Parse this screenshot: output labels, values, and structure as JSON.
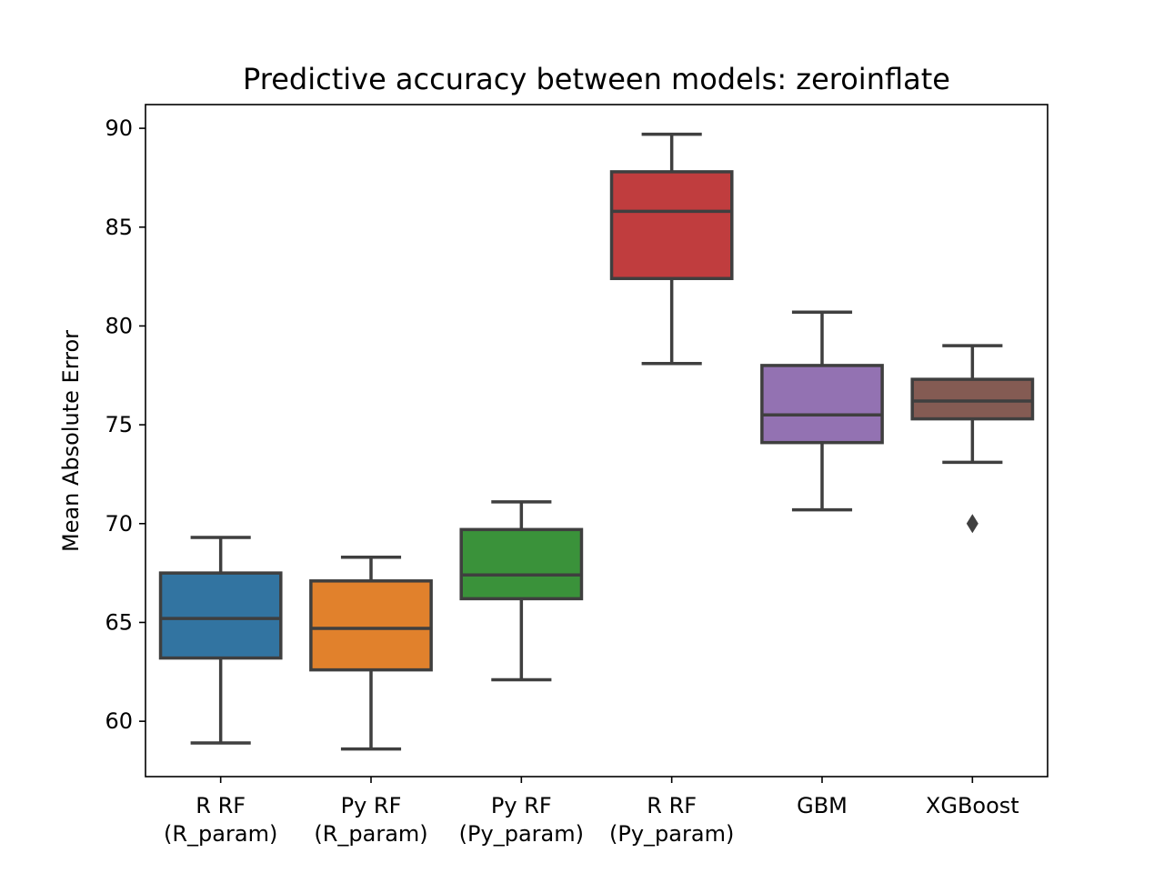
{
  "chart_data": {
    "type": "box",
    "title": "Predictive accuracy between models: zeroinflate",
    "xlabel": "",
    "ylabel": "Mean Absolute Error",
    "ylim": [
      57.2,
      91.2
    ],
    "yticks": [
      60,
      65,
      70,
      75,
      80,
      85,
      90
    ],
    "grid": false,
    "legend": "none",
    "categories": [
      [
        "R RF",
        "(R_param)"
      ],
      [
        "Py RF",
        "(R_param)"
      ],
      [
        "Py RF",
        "(Py_param)"
      ],
      [
        "R RF",
        "(Py_param)"
      ],
      [
        "GBM"
      ],
      [
        "XGBoost"
      ]
    ],
    "boxes": [
      {
        "whisker_low": 58.9,
        "q1": 63.2,
        "median": 65.2,
        "q3": 67.5,
        "whisker_high": 69.3,
        "outliers": [],
        "color": "#3274a1"
      },
      {
        "whisker_low": 58.6,
        "q1": 62.6,
        "median": 64.7,
        "q3": 67.1,
        "whisker_high": 68.3,
        "outliers": [],
        "color": "#e1812c"
      },
      {
        "whisker_low": 62.1,
        "q1": 66.2,
        "median": 67.4,
        "q3": 69.7,
        "whisker_high": 71.1,
        "outliers": [],
        "color": "#3a923a"
      },
      {
        "whisker_low": 78.1,
        "q1": 82.4,
        "median": 85.8,
        "q3": 87.8,
        "whisker_high": 89.7,
        "outliers": [],
        "color": "#c03d3e"
      },
      {
        "whisker_low": 70.7,
        "q1": 74.1,
        "median": 75.5,
        "q3": 78.0,
        "whisker_high": 80.7,
        "outliers": [],
        "color": "#9372b2"
      },
      {
        "whisker_low": 73.1,
        "q1": 75.3,
        "median": 76.2,
        "q3": 77.3,
        "whisker_high": 79.0,
        "outliers": [
          70.0
        ],
        "color": "#845b53"
      }
    ],
    "line_color": "#3f3f3f"
  }
}
